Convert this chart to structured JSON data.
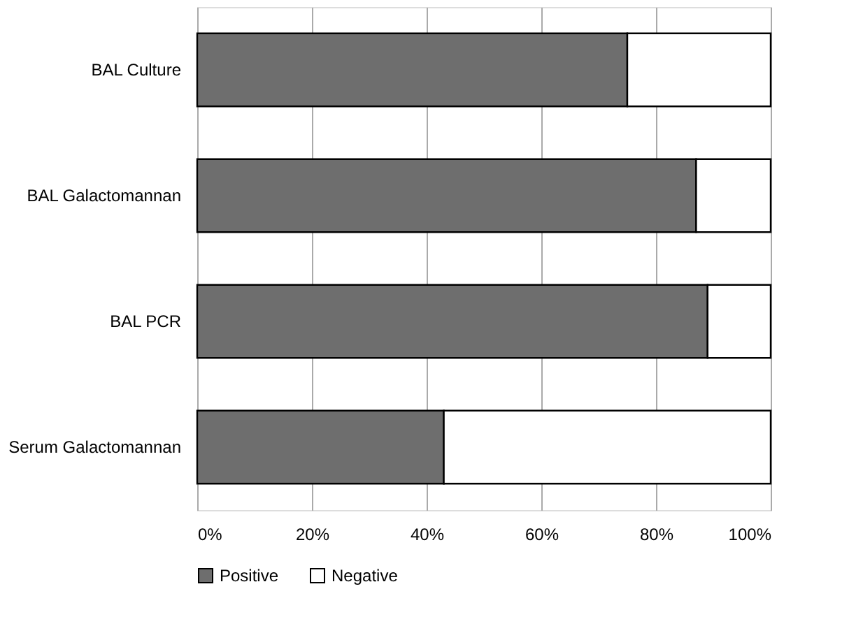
{
  "chart_data": {
    "type": "bar",
    "orientation": "horizontal",
    "stacked": true,
    "categories": [
      "BAL Culture",
      "BAL Galactomannan",
      "BAL PCR",
      "Serum Galactomannan"
    ],
    "series": [
      {
        "name": "Positive",
        "color": "#6e6e6e",
        "values": [
          75,
          87,
          89,
          43
        ]
      },
      {
        "name": "Negative",
        "color": "#ffffff",
        "values": [
          25,
          13,
          11,
          57
        ]
      }
    ],
    "xlim": [
      0,
      100
    ],
    "xticks": [
      {
        "value": 0,
        "label": "0%"
      },
      {
        "value": 20,
        "label": "20%"
      },
      {
        "value": 40,
        "label": "40%"
      },
      {
        "value": 60,
        "label": "60%"
      },
      {
        "value": 80,
        "label": "80%"
      },
      {
        "value": 100,
        "label": "100%"
      }
    ],
    "grid": "x",
    "legend": "bottom"
  }
}
